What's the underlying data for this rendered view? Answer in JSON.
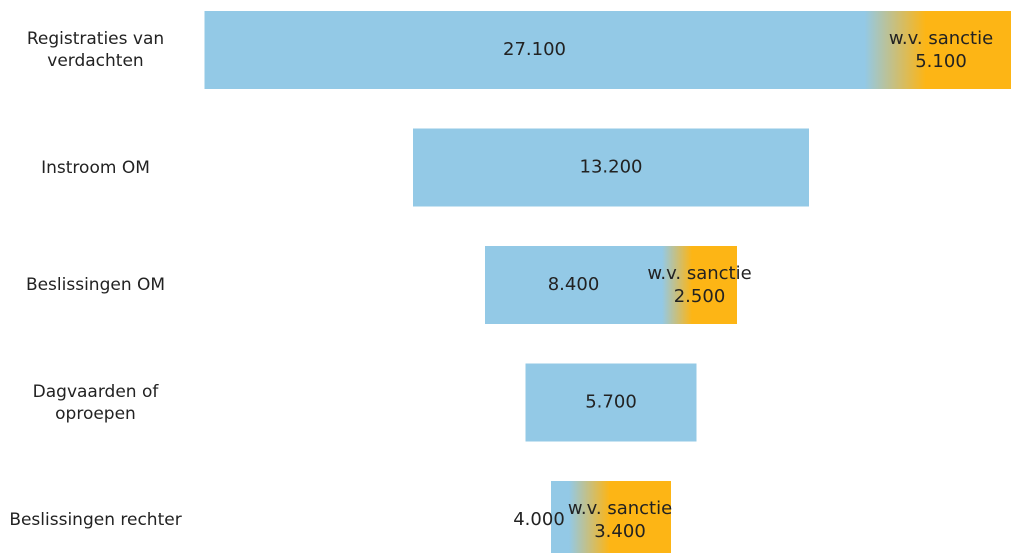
{
  "chart_data": {
    "type": "funnel",
    "categories": [
      "Registraties van verdachten",
      "Instroom OM",
      "Beslissingen OM",
      "Dagvaarden of oproepen",
      "Beslissingen rechter"
    ],
    "values": [
      27100,
      13200,
      8400,
      5700,
      4000
    ],
    "value_labels": [
      "27.100",
      "13.200",
      "8.400",
      "5.700",
      "4.000"
    ],
    "sub_label": "w.v. sanctie",
    "sub_values": [
      5100,
      null,
      2500,
      null,
      3400
    ],
    "sub_value_labels": [
      "5.100",
      null,
      "2.500",
      null,
      "3.400"
    ],
    "color": "#93c9e6",
    "sub_color": "#fdb515"
  }
}
